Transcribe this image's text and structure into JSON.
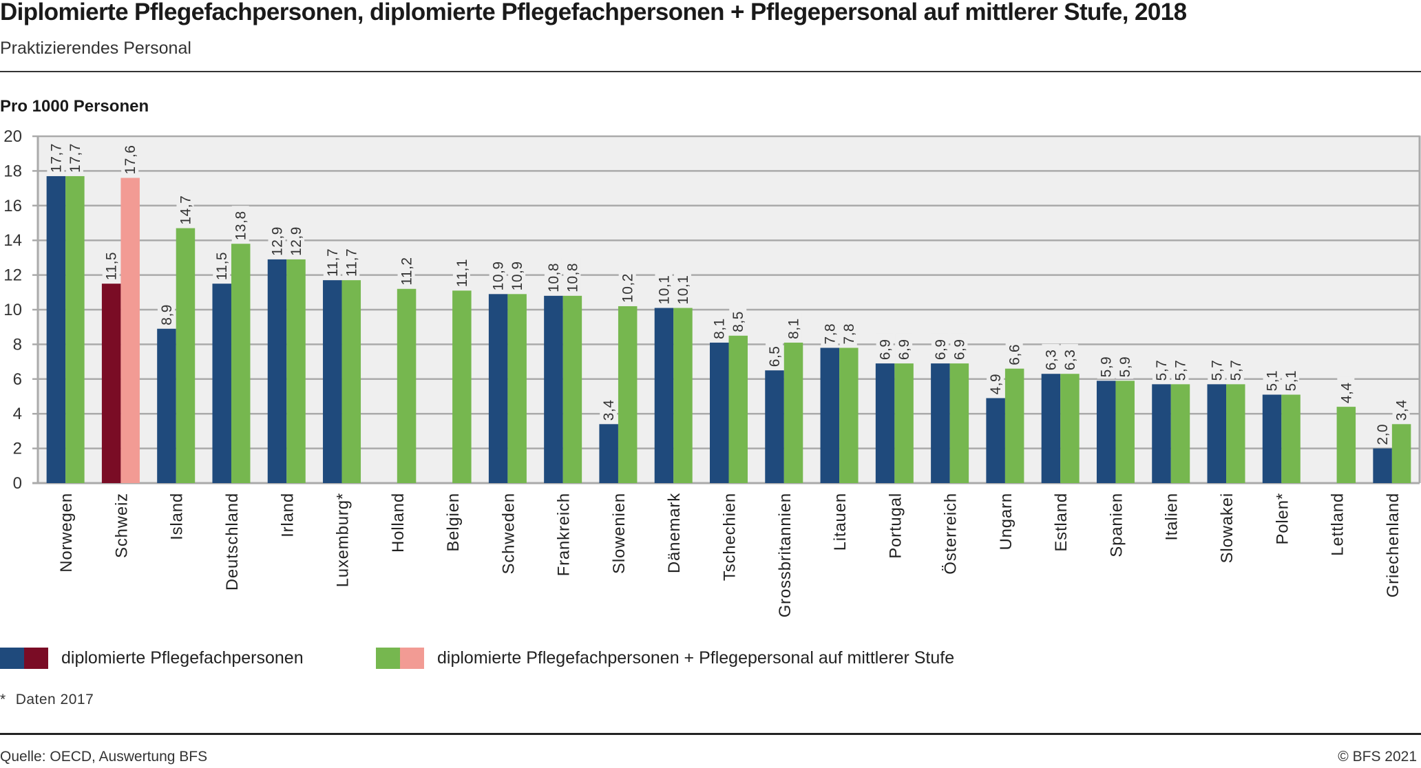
{
  "header": {
    "title": "Diplomierte Pflegefachpersonen, diplomierte Pflegefachpersonen + Pflegepersonal auf mittlerer Stufe, 2018",
    "subtitle": "Praktizierendes Personal",
    "unit_label": "Pro 1000 Personen"
  },
  "legend": [
    {
      "label": "diplomierte Pflegefachpersonen",
      "colors": [
        "#1f4a7c",
        "#7a0c25"
      ]
    },
    {
      "label": "diplomierte Pflegefachpersonen + Pflegepersonal auf mittlerer Stufe",
      "colors": [
        "#76b74f",
        "#f29b94"
      ]
    }
  ],
  "note": {
    "symbol": "*",
    "text": "Daten 2017"
  },
  "footer": {
    "source": "Quelle: OECD, Auswertung BFS",
    "copyright": "© BFS 2021"
  },
  "colors": {
    "series1": "#1f4a7c",
    "series2": "#76b74f",
    "highlight1": "#7a0c25",
    "highlight2": "#f29b94",
    "plot_bg": "#efefef",
    "grid": "#aaaaaa"
  },
  "chart_data": {
    "type": "bar",
    "title": "Diplomierte Pflegefachpersonen, diplomierte Pflegefachpersonen + Pflegepersonal auf mittlerer Stufe, 2018",
    "subtitle": "Praktizierendes Personal",
    "xlabel": "",
    "ylabel": "Pro 1000 Personen",
    "ylim": [
      0,
      20
    ],
    "yticks": [
      0,
      2,
      4,
      6,
      8,
      10,
      12,
      14,
      16,
      18,
      20
    ],
    "grid": true,
    "legend_position": "bottom",
    "highlight_category": "Schweiz",
    "categories": [
      "Norwegen",
      "Schweiz",
      "Island",
      "Deutschland",
      "Irland",
      "Luxemburg*",
      "Holland",
      "Belgien",
      "Schweden",
      "Frankreich",
      "Slowenien",
      "Dänemark",
      "Tschechien",
      "Grossbritannien",
      "Litauen",
      "Portugal",
      "Österreich",
      "Ungarn",
      "Estland",
      "Spanien",
      "Italien",
      "Slowakei",
      "Polen*",
      "Lettland",
      "Griechenland"
    ],
    "series": [
      {
        "name": "diplomierte Pflegefachpersonen",
        "values": [
          17.7,
          11.5,
          8.9,
          11.5,
          12.9,
          11.7,
          null,
          null,
          10.9,
          10.8,
          3.4,
          10.1,
          8.1,
          6.5,
          7.8,
          6.9,
          6.9,
          4.9,
          6.3,
          5.9,
          5.7,
          5.7,
          5.1,
          null,
          2.0
        ],
        "labels": [
          "17,7",
          "11,5",
          "8,9",
          "11,5",
          "12,9",
          "11,7",
          "",
          "",
          "10,9",
          "10,8",
          "3,4",
          "10,1",
          "8,1",
          "6,5",
          "7,8",
          "6,9",
          "6,9",
          "4,9",
          "6,3",
          "5,9",
          "5,7",
          "5,7",
          "5,1",
          "",
          "2,0"
        ]
      },
      {
        "name": "diplomierte Pflegefachpersonen + Pflegepersonal auf mittlerer Stufe",
        "values": [
          17.7,
          17.6,
          14.7,
          13.8,
          12.9,
          11.7,
          11.2,
          11.1,
          10.9,
          10.8,
          10.2,
          10.1,
          8.5,
          8.1,
          7.8,
          6.9,
          6.9,
          6.6,
          6.3,
          5.9,
          5.7,
          5.7,
          5.1,
          4.4,
          3.4
        ],
        "labels": [
          "17,7",
          "17,6",
          "14,7",
          "13,8",
          "12,9",
          "11,7",
          "11,2",
          "11,1",
          "10,9",
          "10,8",
          "10,2",
          "10,1",
          "8,5",
          "8,1",
          "7,8",
          "6,9",
          "6,9",
          "6,6",
          "6,3",
          "5,9",
          "5,7",
          "5,7",
          "5,1",
          "4,4",
          "3,4"
        ]
      }
    ]
  }
}
